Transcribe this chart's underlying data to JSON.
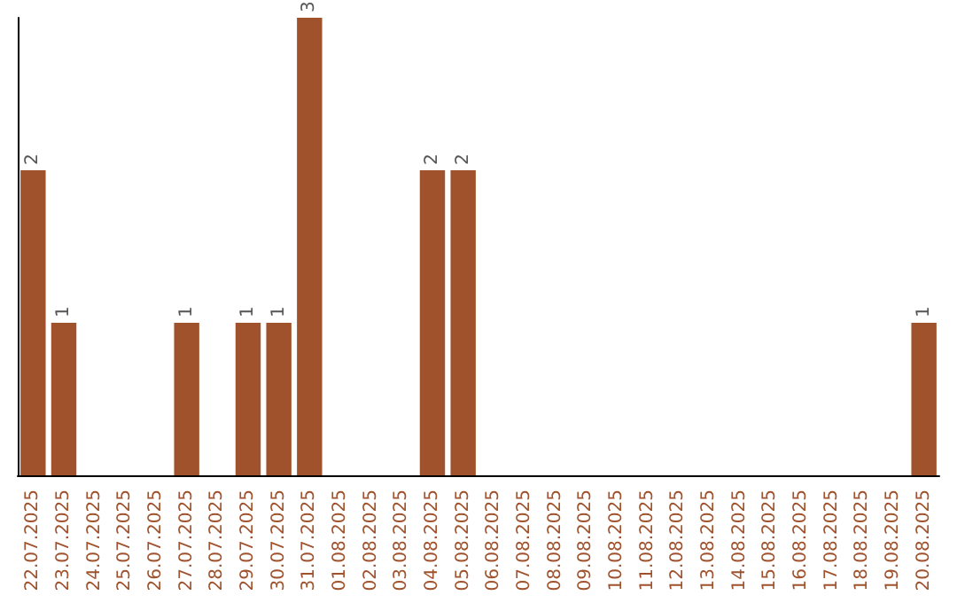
{
  "chart_data": {
    "type": "bar",
    "categories": [
      "22.07.2025",
      "23.07.2025",
      "24.07.2025",
      "25.07.2025",
      "26.07.2025",
      "27.07.2025",
      "28.07.2025",
      "29.07.2025",
      "30.07.2025",
      "31.07.2025",
      "01.08.2025",
      "02.08.2025",
      "03.08.2025",
      "04.08.2025",
      "05.08.2025",
      "06.08.2025",
      "07.08.2025",
      "08.08.2025",
      "09.08.2025",
      "10.08.2025",
      "11.08.2025",
      "12.08.2025",
      "13.08.2025",
      "14.08.2025",
      "15.08.2025",
      "16.08.2025",
      "17.08.2025",
      "18.08.2025",
      "19.08.2025",
      "20.08.2025"
    ],
    "values": [
      2,
      1,
      0,
      0,
      0,
      1,
      0,
      1,
      1,
      3,
      0,
      0,
      0,
      2,
      2,
      0,
      0,
      0,
      0,
      0,
      0,
      0,
      0,
      0,
      0,
      0,
      0,
      0,
      0,
      1
    ],
    "value_labels": [
      "2",
      "1",
      null,
      null,
      null,
      "1",
      null,
      "1",
      "1",
      "3",
      null,
      null,
      null,
      "2",
      "2",
      null,
      null,
      null,
      null,
      null,
      null,
      null,
      null,
      null,
      null,
      null,
      null,
      null,
      null,
      "1"
    ],
    "color": "#a0522d"
  }
}
